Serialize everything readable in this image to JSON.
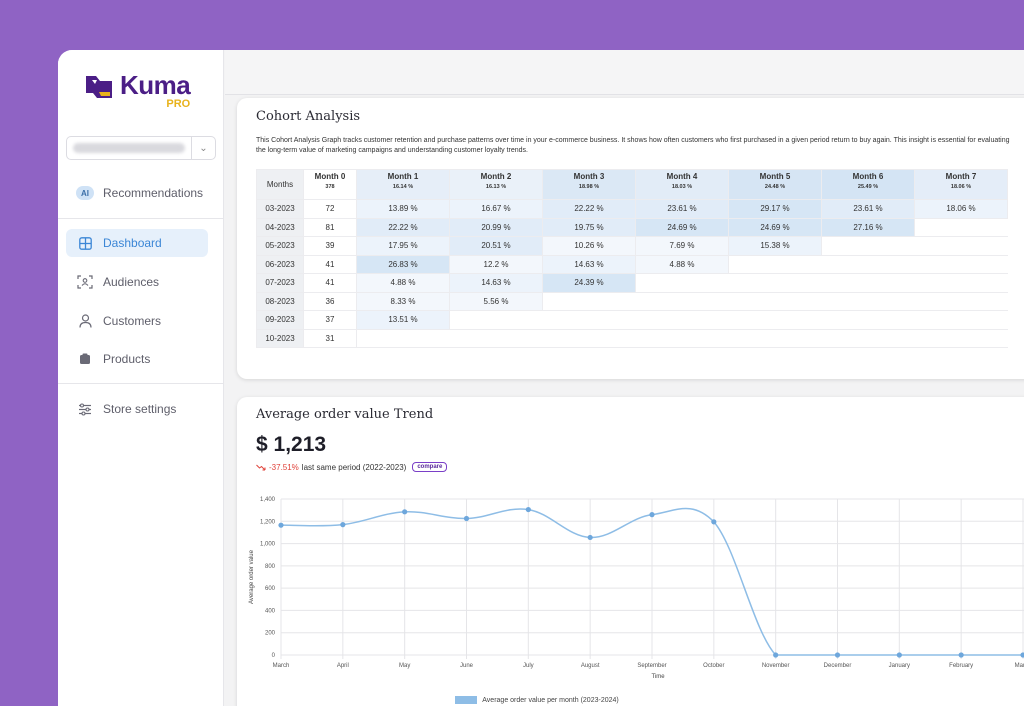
{
  "app": {
    "brand": "Kuma",
    "brand_tier": "PRO"
  },
  "sidebar": {
    "items": [
      {
        "label": "Recommendations",
        "icon": "ai-badge-icon",
        "badge": "AI"
      },
      {
        "label": "Dashboard",
        "icon": "dashboard-grid-icon",
        "active": true
      },
      {
        "label": "Audiences",
        "icon": "audiences-icon"
      },
      {
        "label": "Customers",
        "icon": "user-icon"
      },
      {
        "label": "Products",
        "icon": "product-box-icon"
      },
      {
        "label": "Store settings",
        "icon": "sliders-icon"
      }
    ]
  },
  "cohort": {
    "title": "Cohort Analysis",
    "description": "This Cohort Analysis Graph tracks customer retention and purchase patterns over time in your e-commerce business. It shows how often customers who first purchased in a given period return to buy again. This insight is essential for evaluating the long-term value of marketing campaigns and understanding customer loyalty trends.",
    "headers": [
      "Months",
      "Month 0",
      "Month 1",
      "Month 2",
      "Month 3",
      "Month 4",
      "Month 5",
      "Month 6",
      "Month 7"
    ],
    "subheaders": [
      "",
      "378",
      "16.14 %",
      "16.13 %",
      "18.98 %",
      "18.03 %",
      "24.48 %",
      "25.49 %",
      "18.06 %"
    ],
    "rows": [
      {
        "month": "03-2023",
        "size": "72",
        "cells": [
          "13.89 %",
          "16.67 %",
          "22.22 %",
          "23.61 %",
          "29.17 %",
          "23.61 %",
          "18.06 %"
        ]
      },
      {
        "month": "04-2023",
        "size": "81",
        "cells": [
          "22.22 %",
          "20.99 %",
          "19.75 %",
          "24.69 %",
          "24.69 %",
          "27.16 %"
        ]
      },
      {
        "month": "05-2023",
        "size": "39",
        "cells": [
          "17.95 %",
          "20.51 %",
          "10.26 %",
          "7.69 %",
          "15.38 %"
        ]
      },
      {
        "month": "06-2023",
        "size": "41",
        "cells": [
          "26.83 %",
          "12.2 %",
          "14.63 %",
          "4.88 %"
        ]
      },
      {
        "month": "07-2023",
        "size": "41",
        "cells": [
          "4.88 %",
          "14.63 %",
          "24.39 %"
        ]
      },
      {
        "month": "08-2023",
        "size": "36",
        "cells": [
          "8.33 %",
          "5.56 %"
        ]
      },
      {
        "month": "09-2023",
        "size": "37",
        "cells": [
          "13.51 %"
        ]
      },
      {
        "month": "10-2023",
        "size": "31",
        "cells": []
      }
    ]
  },
  "aov": {
    "title": "Average order value Trend",
    "value": "$ 1,213",
    "change": "-37.51%",
    "change_suffix": "last same period (2022-2023)",
    "compare_label": "compare"
  },
  "colors": {
    "accent": "#3b86d6",
    "brand": "#4b1e86",
    "negative": "#e0423a",
    "line": "#8ebde6",
    "point": "#6ea7dc"
  },
  "chart_data": {
    "type": "line",
    "title": "",
    "xlabel": "Time",
    "ylabel": "Average order value",
    "x": [
      "March",
      "April",
      "May",
      "June",
      "July",
      "August",
      "September",
      "October",
      "November",
      "December",
      "January",
      "February",
      "March"
    ],
    "ylim": [
      0,
      1400
    ],
    "yticks": [
      0,
      200,
      400,
      600,
      800,
      1000,
      1200,
      1400
    ],
    "ytick_labels": [
      "0",
      "200",
      "400",
      "600",
      "800",
      "1,000",
      "1,200",
      "1,400"
    ],
    "series": [
      {
        "name": "Average order value per month (2023-2024)",
        "values": [
          1165,
          1170,
          1285,
          1225,
          1305,
          1055,
          1260,
          1195,
          0,
          0,
          0,
          0,
          0
        ]
      }
    ],
    "legend": "bottom-center",
    "grid": true
  }
}
